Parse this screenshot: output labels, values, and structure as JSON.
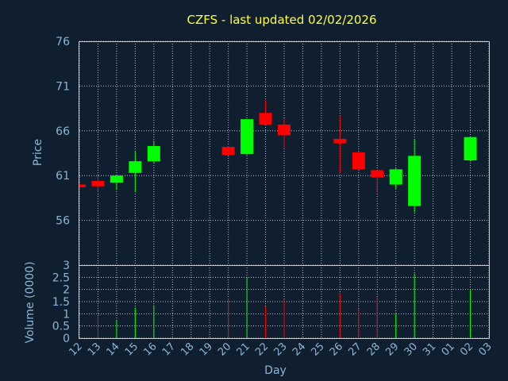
{
  "chart_data": {
    "type": "candlestick",
    "title": "CZFS - last updated 02/02/2026",
    "colors": {
      "background": "#0f1f30",
      "up": "#00ff00",
      "down": "#ff0000",
      "title": "#ffff33",
      "axis_text": "#8fb6d6",
      "grid": "#b8c0c8"
    },
    "price_panel": {
      "ylabel": "Price",
      "ylim": [
        51,
        76
      ],
      "yticks": [
        "56",
        "61",
        "66",
        "71",
        "76"
      ],
      "grid": true
    },
    "volume_panel": {
      "ylabel": "Volume (0000)",
      "ylim": [
        0,
        3
      ],
      "yticks": [
        "0",
        "0.5",
        "1",
        "1.5",
        "2",
        "2.5",
        "3"
      ],
      "grid": true
    },
    "xlabel": "Day",
    "x_categories": [
      "12",
      "13",
      "14",
      "15",
      "16",
      "17",
      "18",
      "19",
      "20",
      "21",
      "22",
      "23",
      "24",
      "25",
      "26",
      "27",
      "28",
      "29",
      "30",
      "31",
      "01",
      "02",
      "03"
    ],
    "candles": [
      {
        "day": "12",
        "open": 60.0,
        "high": 60.2,
        "low": 59.6,
        "close": 59.7,
        "volume": 0
      },
      {
        "day": "13",
        "open": 60.4,
        "high": 61.0,
        "low": 59.2,
        "close": 59.8,
        "volume": 0.9
      },
      {
        "day": "14",
        "open": 60.2,
        "high": 61.0,
        "low": 59.4,
        "close": 61.0,
        "volume": 0.75
      },
      {
        "day": "15",
        "open": 61.3,
        "high": 63.7,
        "low": 59.2,
        "close": 62.6,
        "volume": 1.25
      },
      {
        "day": "16",
        "open": 62.6,
        "high": 64.9,
        "low": 62.4,
        "close": 64.3,
        "volume": 1.35
      },
      {
        "day": "20",
        "open": 64.2,
        "high": 64.3,
        "low": 63.3,
        "close": 63.3,
        "volume": 1.65
      },
      {
        "day": "21",
        "open": 63.4,
        "high": 67.3,
        "low": 63.3,
        "close": 67.3,
        "volume": 2.5
      },
      {
        "day": "22",
        "open": 68.0,
        "high": 69.4,
        "low": 66.7,
        "close": 66.7,
        "volume": 1.3
      },
      {
        "day": "23",
        "open": 66.7,
        "high": 67.4,
        "low": 64.1,
        "close": 65.5,
        "volume": 1.6
      },
      {
        "day": "26",
        "open": 65.1,
        "high": 67.7,
        "low": 61.3,
        "close": 64.6,
        "volume": 1.85
      },
      {
        "day": "27",
        "open": 63.6,
        "high": 63.6,
        "low": 61.7,
        "close": 61.7,
        "volume": 1.2
      },
      {
        "day": "28",
        "open": 61.6,
        "high": 61.6,
        "low": 59.1,
        "close": 60.8,
        "volume": 1.7
      },
      {
        "day": "29",
        "open": 60.0,
        "high": 61.8,
        "low": 59.5,
        "close": 61.7,
        "volume": 1.0
      },
      {
        "day": "30",
        "open": 57.6,
        "high": 65.0,
        "low": 56.9,
        "close": 63.2,
        "volume": 2.65
      },
      {
        "day": "02",
        "open": 62.7,
        "high": 65.3,
        "low": 62.6,
        "close": 65.3,
        "volume": 2.0
      }
    ]
  }
}
